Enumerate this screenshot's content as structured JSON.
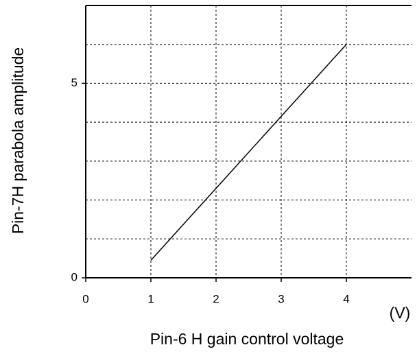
{
  "chart_data": {
    "type": "line",
    "xlabel": "Pin-6 H gain control voltage",
    "ylabel": "Pin-7H parabola amplitude",
    "xunit": "(V)",
    "x": [
      1,
      4
    ],
    "series": [
      {
        "color": "#000000",
        "values": [
          0.45,
          6.0
        ]
      }
    ],
    "xlim": [
      0,
      5
    ],
    "ylim": [
      0,
      7
    ],
    "xticks": [
      0,
      1,
      2,
      3,
      4
    ],
    "yticks": [
      0,
      5
    ],
    "xgrid": [
      1,
      2,
      3,
      4
    ],
    "ygrid": [
      1,
      2,
      3,
      4,
      5,
      6
    ],
    "grid": true
  }
}
